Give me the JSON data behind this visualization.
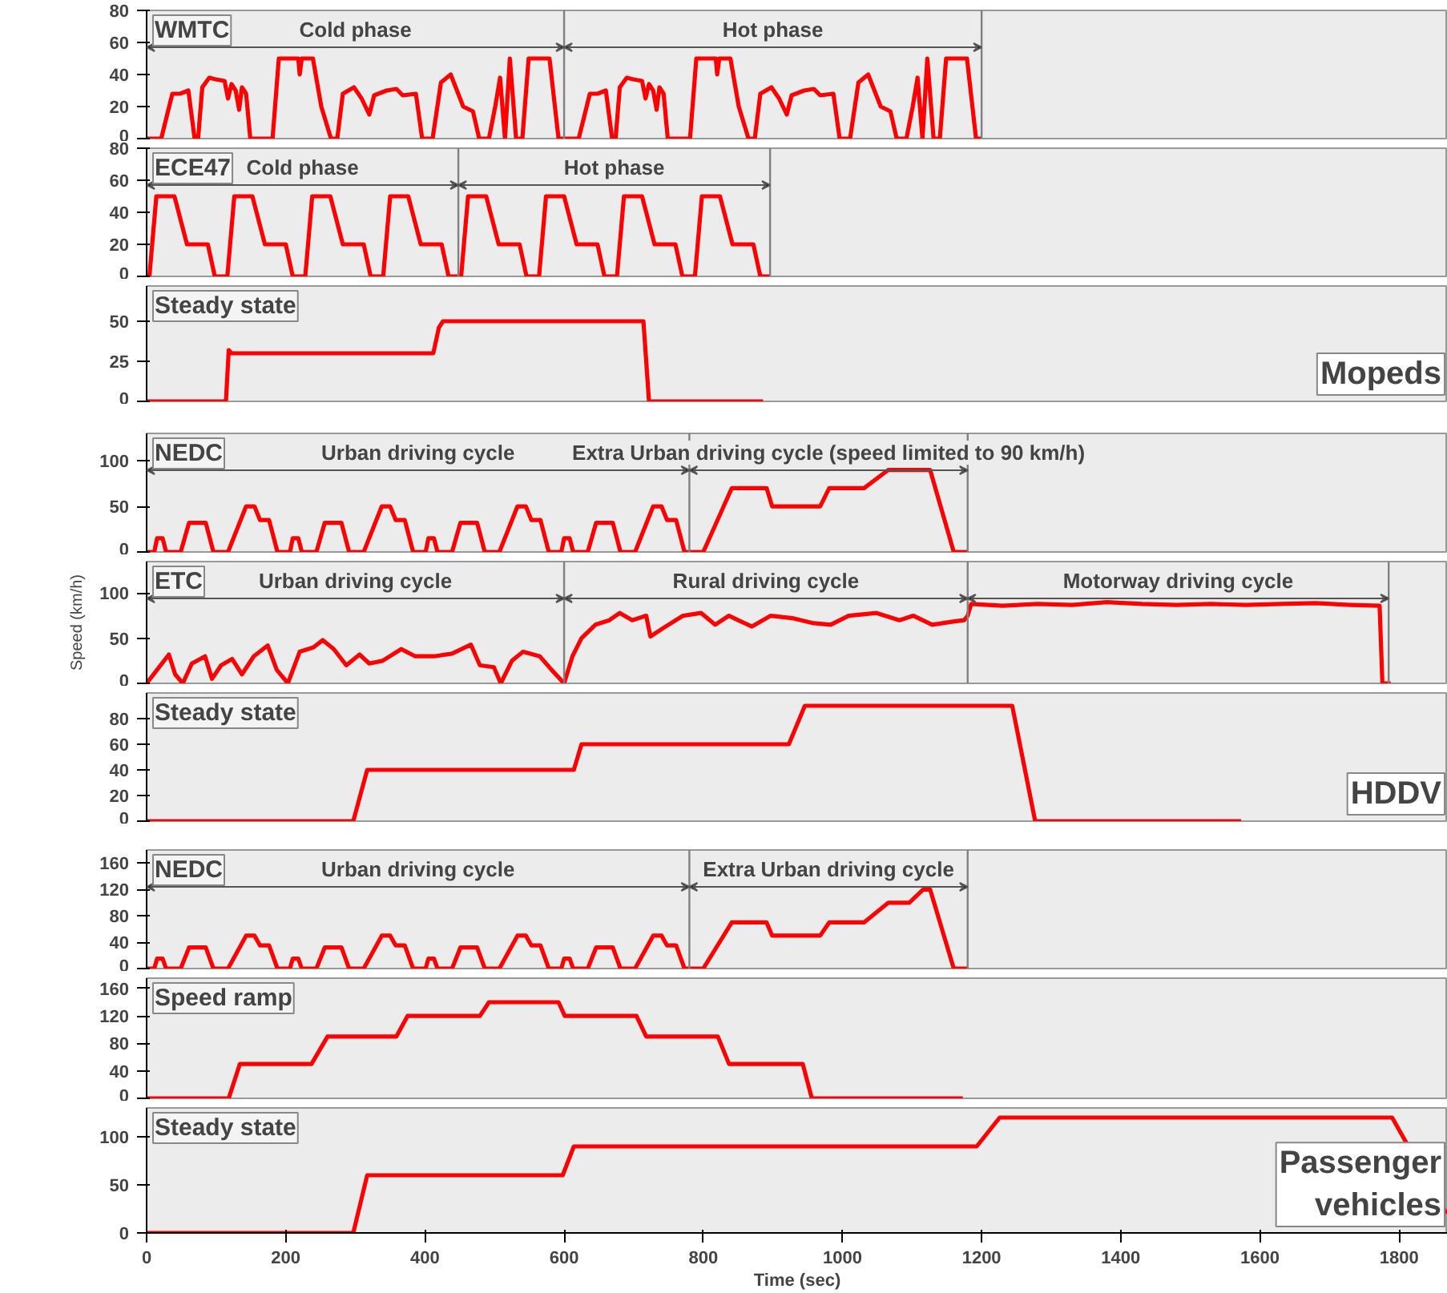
{
  "chart_data": [
    {
      "type": "line",
      "title": "WMTC",
      "ylim": [
        0,
        80
      ],
      "yticks": [
        0,
        20,
        40,
        60,
        80
      ],
      "xlim": [
        0,
        1870
      ],
      "tick_labels": "y",
      "series": [
        {
          "color": "#ff0000",
          "x": [
            0,
            21,
            37,
            48,
            60,
            69,
            74,
            80,
            90,
            99,
            112,
            117,
            122,
            128,
            133,
            137,
            143,
            149,
            181,
            190,
            218,
            220,
            223,
            239,
            251,
            265,
            274,
            282,
            298,
            309,
            320,
            327,
            345,
            359,
            368,
            387,
            396,
            411,
            423,
            437,
            455,
            469,
            478,
            492,
            501,
            508,
            515,
            522,
            531,
            540,
            549,
            579,
            592,
            600,
            621,
            637,
            648,
            660,
            669,
            674,
            680,
            690,
            699,
            712,
            717,
            722,
            728,
            733,
            737,
            743,
            749,
            781,
            790,
            818,
            820,
            823,
            839,
            851,
            865,
            874,
            882,
            898,
            909,
            920,
            927,
            945,
            959,
            968,
            987,
            996,
            1011,
            1023,
            1037,
            1055,
            1069,
            1078,
            1092,
            1101,
            1108,
            1115,
            1122,
            1131,
            1140,
            1149,
            1179,
            1192,
            1200
          ],
          "values": [
            0,
            0,
            28,
            28,
            30,
            0,
            0,
            32,
            38,
            37,
            36,
            25,
            34,
            30,
            18,
            32,
            28,
            0,
            0,
            50,
            50,
            40,
            50,
            50,
            20,
            0,
            0,
            28,
            32,
            25,
            15,
            27,
            30,
            31,
            27,
            28,
            0,
            0,
            35,
            40,
            20,
            17,
            0,
            0,
            20,
            38,
            0,
            50,
            0,
            0,
            50,
            50,
            0,
            0,
            0,
            28,
            28,
            30,
            0,
            0,
            32,
            38,
            37,
            36,
            25,
            34,
            30,
            18,
            32,
            28,
            0,
            0,
            50,
            50,
            40,
            50,
            50,
            20,
            0,
            0,
            28,
            32,
            25,
            15,
            27,
            30,
            31,
            27,
            28,
            0,
            0,
            35,
            40,
            20,
            17,
            0,
            0,
            20,
            38,
            0,
            50,
            0,
            0,
            50,
            50,
            0,
            0
          ]
        }
      ],
      "ref_lines": [
        {
          "axis": "x",
          "value": 600,
          "color": "#808080"
        },
        {
          "axis": "x",
          "value": 1200,
          "color": "#808080"
        }
      ],
      "annotations": [
        "Cold phase",
        "Hot phase"
      ]
    },
    {
      "type": "line",
      "title": "ECE47",
      "ylim": [
        0,
        80
      ],
      "yticks": [
        0,
        20,
        40,
        60,
        80
      ],
      "xlim": [
        0,
        1870
      ],
      "tick_labels": "y",
      "series": [
        {
          "color": "#ff0000",
          "x": [
            0,
            4,
            14,
            40,
            58,
            88,
            98,
            112,
            116,
            126,
            152,
            170,
            200,
            210,
            224,
            228,
            238,
            264,
            282,
            312,
            322,
            336,
            340,
            350,
            376,
            394,
            424,
            434,
            448,
            452,
            462,
            488,
            506,
            536,
            546,
            560,
            564,
            574,
            600,
            618,
            648,
            658,
            672,
            676,
            686,
            712,
            730,
            760,
            770,
            784,
            788,
            798,
            824,
            842,
            872,
            882,
            896
          ],
          "values": [
            0,
            0,
            50,
            50,
            20,
            20,
            0,
            0,
            0,
            50,
            50,
            20,
            20,
            0,
            0,
            0,
            50,
            50,
            20,
            20,
            0,
            0,
            0,
            50,
            50,
            20,
            20,
            0,
            0,
            0,
            50,
            50,
            20,
            20,
            0,
            0,
            0,
            50,
            50,
            20,
            20,
            0,
            0,
            0,
            50,
            50,
            20,
            20,
            0,
            0,
            0,
            50,
            50,
            20,
            20,
            0,
            0
          ]
        }
      ],
      "ref_lines": [
        {
          "axis": "x",
          "value": 448,
          "color": "#808080"
        },
        {
          "axis": "x",
          "value": 896,
          "color": "#808080"
        }
      ],
      "annotations": [
        "Cold phase",
        "Hot phase"
      ]
    },
    {
      "type": "line",
      "title": "Steady state",
      "ylim": [
        0,
        72
      ],
      "yticks": [
        0,
        25,
        50
      ],
      "xlim": [
        0,
        1870
      ],
      "tick_labels": "y",
      "series": [
        {
          "color": "#ff0000",
          "x": [
            0,
            114,
            118,
            122,
            412,
            420,
            426,
            714,
            722,
            886
          ],
          "values": [
            0,
            0,
            32,
            30,
            30,
            46,
            50,
            50,
            0,
            0
          ]
        }
      ],
      "annotations": [
        "Mopeds"
      ]
    },
    {
      "type": "line",
      "title": "NEDC",
      "ylim": [
        0,
        130
      ],
      "yticks": [
        0,
        50,
        100
      ],
      "xlim": [
        0,
        1870
      ],
      "tick_labels": "y",
      "series": [
        {
          "color": "#ff0000",
          "x": [
            0,
            11,
            15,
            23,
            28,
            49,
            61,
            85,
            96,
            117,
            143,
            155,
            163,
            176,
            188,
            195,
            206,
            210,
            218,
            223,
            244,
            256,
            280,
            291,
            312,
            338,
            350,
            358,
            371,
            383,
            390,
            401,
            405,
            413,
            418,
            439,
            451,
            475,
            486,
            507,
            533,
            545,
            553,
            566,
            578,
            585,
            596,
            600,
            608,
            613,
            634,
            646,
            670,
            681,
            702,
            728,
            740,
            748,
            761,
            773,
            800,
            841,
            891,
            899,
            968,
            981,
            1031,
            1066,
            1126,
            1160,
            1180
          ],
          "values": [
            0,
            0,
            15,
            15,
            0,
            0,
            32,
            32,
            0,
            0,
            50,
            50,
            35,
            35,
            0,
            0,
            0,
            15,
            15,
            0,
            0,
            32,
            32,
            0,
            0,
            50,
            50,
            35,
            35,
            0,
            0,
            0,
            15,
            15,
            0,
            0,
            32,
            32,
            0,
            0,
            50,
            50,
            35,
            35,
            0,
            0,
            0,
            15,
            15,
            0,
            0,
            32,
            32,
            0,
            0,
            50,
            50,
            35,
            35,
            0,
            0,
            70,
            70,
            50,
            50,
            70,
            70,
            90,
            90,
            0,
            0
          ]
        }
      ],
      "ref_lines": [
        {
          "axis": "x",
          "value": 780,
          "color": "#808080"
        },
        {
          "axis": "x",
          "value": 1180,
          "color": "#808080"
        }
      ],
      "annotations": [
        "Urban driving cycle",
        "Extra Urban driving cycle (speed limited to 90 km/h)"
      ]
    },
    {
      "type": "line",
      "title": "ETC",
      "ylabel": "Speed (km/h)",
      "ylim": [
        0,
        135
      ],
      "yticks": [
        0,
        50,
        100
      ],
      "xlim": [
        0,
        1870
      ],
      "tick_labels": "y",
      "series": [
        {
          "color": "#ff0000",
          "x": [
            0,
            15,
            32,
            41,
            52,
            65,
            84,
            94,
            107,
            123,
            137,
            154,
            174,
            187,
            203,
            220,
            240,
            253,
            269,
            287,
            306,
            320,
            339,
            366,
            386,
            413,
            439,
            466,
            479,
            499,
            509,
            525,
            541,
            565,
            582,
            600,
            612,
            625,
            645,
            665,
            680,
            698,
            718,
            724,
            744,
            771,
            797,
            817,
            837,
            850,
            870,
            897,
            930,
            956,
            983,
            1009,
            1049,
            1082,
            1102,
            1129,
            1155,
            1175,
            1180,
            1185,
            1230,
            1280,
            1330,
            1380,
            1430,
            1480,
            1530,
            1580,
            1630,
            1680,
            1730,
            1772,
            1776,
            1788
          ],
          "values": [
            0,
            15,
            32,
            10,
            0,
            22,
            30,
            5,
            20,
            27,
            10,
            30,
            42,
            15,
            0,
            35,
            40,
            48,
            38,
            20,
            32,
            22,
            25,
            38,
            30,
            30,
            33,
            43,
            20,
            18,
            0,
            25,
            35,
            30,
            15,
            0,
            30,
            50,
            65,
            70,
            78,
            70,
            75,
            52,
            62,
            75,
            78,
            65,
            75,
            70,
            63,
            75,
            72,
            67,
            65,
            75,
            78,
            70,
            75,
            65,
            68,
            70,
            75,
            88,
            86,
            88,
            87,
            90,
            88,
            87,
            88,
            87,
            88,
            89,
            87,
            86,
            0,
            0
          ]
        }
      ],
      "ref_lines": [
        {
          "axis": "x",
          "value": 600,
          "color": "#808080"
        },
        {
          "axis": "x",
          "value": 1180,
          "color": "#808080"
        },
        {
          "axis": "x",
          "value": 1785,
          "color": "#808080"
        }
      ],
      "annotations": [
        "Urban driving cycle",
        "Rural driving cycle",
        "Motorway driving cycle"
      ]
    },
    {
      "type": "line",
      "title": "Steady state",
      "ylim": [
        0,
        100
      ],
      "yticks": [
        0,
        20,
        40,
        60,
        80
      ],
      "xlim": [
        0,
        1870
      ],
      "tick_labels": "y",
      "series": [
        {
          "color": "#ff0000",
          "x": [
            0,
            297,
            317,
            614,
            625,
            923,
            946,
            1244,
            1277,
            1573
          ],
          "values": [
            0,
            0,
            40,
            40,
            60,
            60,
            90,
            90,
            0,
            0
          ]
        }
      ],
      "annotations": [
        "HDDV"
      ]
    },
    {
      "type": "line",
      "title": "NEDC",
      "ylim": [
        0,
        180
      ],
      "yticks": [
        0,
        40,
        80,
        120,
        160
      ],
      "xlim": [
        0,
        1870
      ],
      "tick_labels": "y",
      "series": [
        {
          "color": "#ff0000",
          "x": [
            0,
            11,
            15,
            23,
            28,
            49,
            61,
            85,
            96,
            117,
            143,
            155,
            163,
            176,
            188,
            195,
            206,
            210,
            218,
            223,
            244,
            256,
            280,
            291,
            312,
            338,
            350,
            358,
            371,
            383,
            390,
            401,
            405,
            413,
            418,
            439,
            451,
            475,
            486,
            507,
            533,
            545,
            553,
            566,
            578,
            585,
            596,
            600,
            608,
            613,
            634,
            646,
            670,
            681,
            702,
            728,
            740,
            748,
            761,
            773,
            800,
            841,
            891,
            899,
            968,
            981,
            1031,
            1066,
            1096,
            1116,
            1126,
            1160,
            1180
          ],
          "values": [
            0,
            0,
            15,
            15,
            0,
            0,
            32,
            32,
            0,
            0,
            50,
            50,
            35,
            35,
            0,
            0,
            0,
            15,
            15,
            0,
            0,
            32,
            32,
            0,
            0,
            50,
            50,
            35,
            35,
            0,
            0,
            0,
            15,
            15,
            0,
            0,
            32,
            32,
            0,
            0,
            50,
            50,
            35,
            35,
            0,
            0,
            0,
            15,
            15,
            0,
            0,
            32,
            32,
            0,
            0,
            50,
            50,
            35,
            35,
            0,
            0,
            70,
            70,
            50,
            50,
            70,
            70,
            100,
            100,
            120,
            120,
            0,
            0
          ]
        }
      ],
      "ref_lines": [
        {
          "axis": "x",
          "value": 780,
          "color": "#808080"
        },
        {
          "axis": "x",
          "value": 1180,
          "color": "#808080"
        }
      ],
      "annotations": [
        "Urban driving cycle",
        "Extra Urban driving cycle"
      ]
    },
    {
      "type": "line",
      "title": "Speed ramp",
      "ylim": [
        0,
        175
      ],
      "yticks": [
        0,
        40,
        80,
        120,
        160
      ],
      "xlim": [
        0,
        1870
      ],
      "tick_labels": "y",
      "series": [
        {
          "color": "#ff0000",
          "x": [
            0,
            118,
            134,
            237,
            260,
            359,
            375,
            479,
            492,
            592,
            601,
            704,
            718,
            821,
            837,
            943,
            956,
            1173
          ],
          "values": [
            0,
            0,
            50,
            50,
            90,
            90,
            120,
            120,
            140,
            140,
            120,
            120,
            90,
            90,
            50,
            50,
            0,
            0
          ]
        }
      ]
    },
    {
      "type": "line",
      "title": "Steady state",
      "ylim": [
        0,
        130
      ],
      "yticks": [
        0,
        50,
        100
      ],
      "xlim": [
        0,
        1870
      ],
      "xticks": [
        0,
        200,
        400,
        600,
        800,
        1000,
        1200,
        1400,
        1600,
        1800
      ],
      "xlabel": "Time (sec)",
      "series": [
        {
          "color": "#ff0000",
          "x": [
            0,
            297,
            317,
            598,
            614,
            1193,
            1226,
            1790,
            1868
          ],
          "values": [
            0,
            0,
            60,
            60,
            90,
            90,
            120,
            120,
            20
          ]
        }
      ],
      "annotations": [
        "Passenger vehicles"
      ]
    }
  ]
}
